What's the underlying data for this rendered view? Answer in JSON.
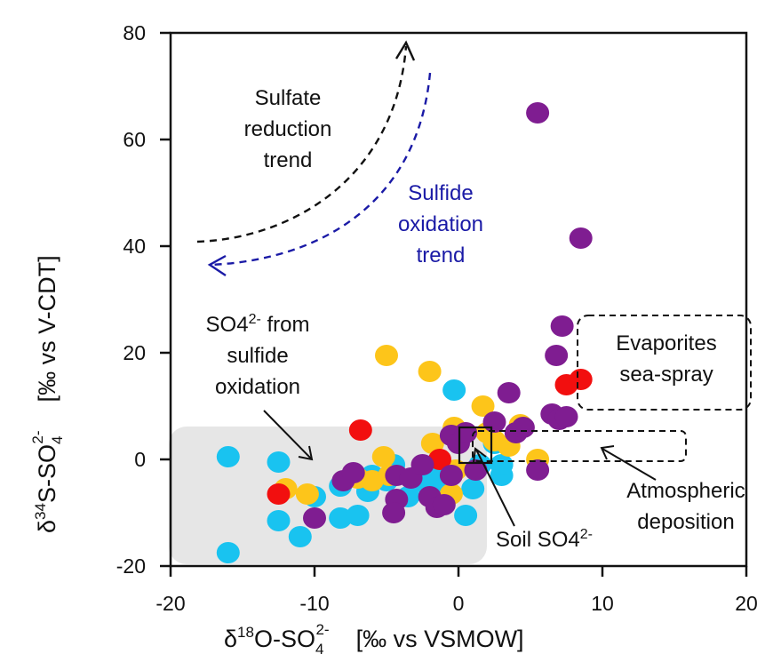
{
  "chart_data": {
    "type": "scatter",
    "title": "",
    "xlabel": "δ18O-SO42-  [‰ vs VSMOW]",
    "ylabel": "δ34S-SO42-  [‰ vs V-CDT]",
    "xlim": [
      -20,
      20
    ],
    "ylim": [
      -20,
      80
    ],
    "x_ticks": [
      "-20",
      "-10",
      "0",
      "10",
      "20"
    ],
    "y_ticks": [
      "-20",
      "0",
      "20",
      "40",
      "60",
      "80"
    ],
    "x_tick_values": [
      -20,
      -10,
      0,
      10,
      20
    ],
    "y_tick_values": [
      -20,
      0,
      20,
      40,
      60,
      80
    ],
    "series": [
      {
        "name": "cyan",
        "color": "#19c3f0",
        "points": [
          [
            -16,
            0.5
          ],
          [
            -16,
            -17.5
          ],
          [
            -12.5,
            -0.5
          ],
          [
            -12.5,
            -11.5
          ],
          [
            -11,
            -14.5
          ],
          [
            -10,
            -7
          ],
          [
            -8.2,
            -5
          ],
          [
            -8.2,
            -11
          ],
          [
            -7,
            -10.5
          ],
          [
            -6.3,
            -6
          ],
          [
            -6,
            -3
          ],
          [
            -5,
            -4
          ],
          [
            -4.5,
            -1
          ],
          [
            -3.5,
            -7
          ],
          [
            -2.3,
            -4.5
          ],
          [
            -1.8,
            -3
          ],
          [
            -1,
            -5.5
          ],
          [
            0.5,
            -10.5
          ],
          [
            1,
            -5.5
          ],
          [
            1.5,
            -1
          ],
          [
            -0.3,
            13
          ],
          [
            2.5,
            3
          ],
          [
            3,
            -3
          ],
          [
            3,
            -1
          ]
        ]
      },
      {
        "name": "gold",
        "color": "#fdc51a",
        "points": [
          [
            -12,
            -5.5
          ],
          [
            -10.5,
            -6.5
          ],
          [
            -7,
            -3.5
          ],
          [
            -6,
            -4
          ],
          [
            -5.2,
            0.5
          ],
          [
            -5,
            19.5
          ],
          [
            -4.8,
            -3
          ],
          [
            -2,
            16.5
          ],
          [
            -1.8,
            3
          ],
          [
            -0.5,
            -6.5
          ],
          [
            -0.2,
            -2
          ],
          [
            -0.3,
            6
          ],
          [
            1.7,
            10
          ],
          [
            2,
            5
          ],
          [
            2.5,
            3.5
          ],
          [
            3.5,
            2.5
          ],
          [
            4.3,
            6.5
          ],
          [
            5.5,
            0
          ]
        ]
      },
      {
        "name": "red",
        "color": "#f20f0f",
        "points": [
          [
            -12.5,
            -6.5
          ],
          [
            -6.8,
            5.5
          ],
          [
            -1.3,
            0
          ],
          [
            7.5,
            14
          ],
          [
            8.5,
            15
          ]
        ]
      },
      {
        "name": "purple",
        "color": "#7f1d91",
        "points": [
          [
            -10,
            -11
          ],
          [
            -8,
            -4
          ],
          [
            -7.3,
            -2.5
          ],
          [
            -4.3,
            -3
          ],
          [
            -4.3,
            -7.5
          ],
          [
            -4.5,
            -10
          ],
          [
            -3.3,
            -3.5
          ],
          [
            -2.5,
            -1
          ],
          [
            -2,
            -7
          ],
          [
            -1.5,
            -9
          ],
          [
            -1,
            -8.5
          ],
          [
            -0.5,
            -3
          ],
          [
            -0.5,
            4.5
          ],
          [
            0,
            3
          ],
          [
            0.5,
            5
          ],
          [
            1.2,
            -2
          ],
          [
            2.5,
            7
          ],
          [
            3.5,
            12.5
          ],
          [
            4,
            5
          ],
          [
            4.5,
            6
          ],
          [
            5.5,
            65
          ],
          [
            5.5,
            -2
          ],
          [
            6.5,
            8.5
          ],
          [
            6.8,
            19.5
          ],
          [
            7,
            7.5
          ],
          [
            7.2,
            25
          ],
          [
            8.5,
            41.5
          ],
          [
            7.5,
            8
          ]
        ]
      }
    ]
  },
  "annotations": {
    "sulfate_reduction": [
      "Sulfate",
      "reduction",
      "trend"
    ],
    "sulfide_oxidation": [
      "Sulfide",
      "oxidation",
      "trend"
    ],
    "so4_from_sulfide": [
      "SO4",
      "2-",
      " from",
      "sulfide",
      "oxidation"
    ],
    "evaporites": [
      "Evaporites",
      "sea-spray"
    ],
    "atmospheric": [
      "Atmospheric",
      "deposition"
    ],
    "soil": [
      "Soil SO4",
      "2-"
    ]
  },
  "axis_text": {
    "x_delta": "δ",
    "x_iso": "18",
    "x_main": "O-SO",
    "x_sub": "4",
    "x_sup": "2-",
    "x_units": "[‰ vs VSMOW]",
    "y_delta": "δ",
    "y_iso": "34",
    "y_main": "S-SO",
    "y_sub": "4",
    "y_sup": "2-",
    "y_units": "[‰ vs V-CDT]"
  }
}
